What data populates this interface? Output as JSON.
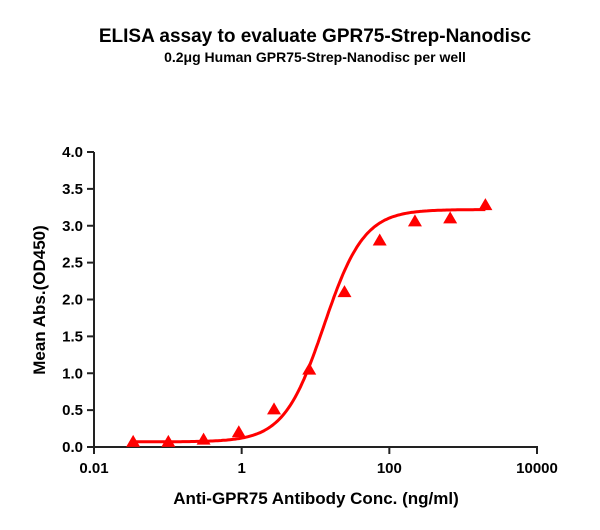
{
  "chart_data": {
    "type": "scatter",
    "title": "ELISA assay to evaluate GPR75-Strep-Nanodisc",
    "subtitle": "0.2μg Human GPR75-Strep-Nanodisc per well",
    "xlabel": "Anti-GPR75 Antibody Conc. (ng/ml)",
    "ylabel": "Mean Abs.(OD450)",
    "xscale": "log",
    "xlim": [
      0.01,
      10000
    ],
    "ylim": [
      0,
      4.0
    ],
    "xticks": [
      "0.01",
      "1",
      "100",
      "10000"
    ],
    "yticks": [
      "0.0",
      "0.5",
      "1.0",
      "1.5",
      "2.0",
      "2.5",
      "3.0",
      "3.5",
      "4.0"
    ],
    "grid": false,
    "color": "#ff0000",
    "marker": "triangle",
    "fit_curve": "sigmoidal",
    "series": [
      {
        "x": [
          0.0339,
          0.1016,
          0.3048,
          0.9145,
          2.743,
          8.23,
          24.69,
          74.07,
          222.2,
          666.7,
          2000
        ],
        "y": [
          0.07,
          0.07,
          0.1,
          0.2,
          0.51,
          1.05,
          2.1,
          2.8,
          3.06,
          3.1,
          3.28
        ]
      }
    ]
  }
}
